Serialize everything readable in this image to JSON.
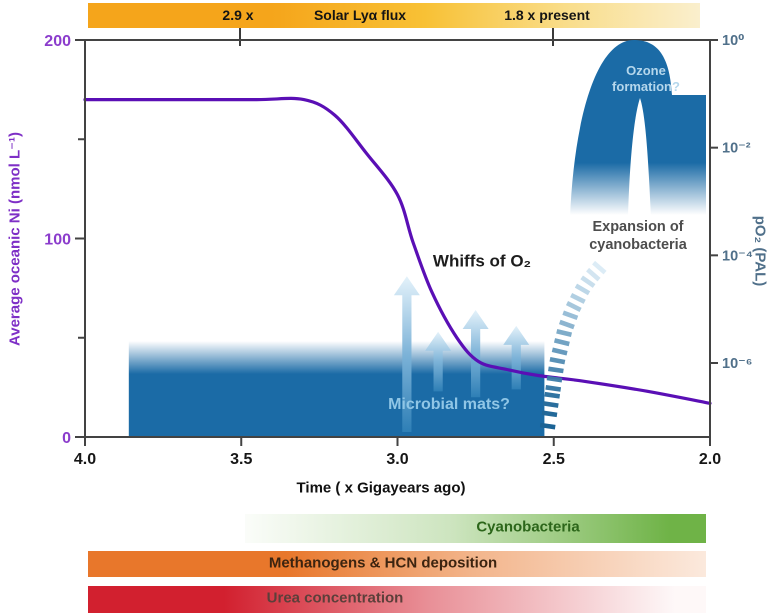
{
  "top_bar": {
    "flux_left_marker": "2.9 x",
    "flux_title": "Solar Lyα flux",
    "flux_right_marker": "1.8 x present"
  },
  "axis_titles": {
    "x": "Time ( x Gigayears ago)",
    "y_left": "Average oceanic Ni (nmol L⁻¹)",
    "y_right": "pO₂ (PAL)"
  },
  "annotations": {
    "whiffs": "Whiffs of O₂",
    "mats": "Microbial mats?",
    "ozone": "Ozone formation?",
    "expansion": "Expansion of cyanobacteria"
  },
  "timeline_bar_labels": {
    "cyanobacteria": "Cyanobacteria",
    "methanogens": "Methanogens & HCN deposition",
    "urea": "Urea concentration"
  },
  "colors": {
    "ni_curve": "#5a0fb5",
    "ni_axis_text": "#8b3ccc",
    "po2_axis_text": "#50708a",
    "steel_blue": "#1b6ba6",
    "frame": "#434343",
    "flux_bar_orange": "#f5a51b",
    "cyanobacteria_green": "#6fb347",
    "methanogens_orange": "#e8772b",
    "urea_red": "#d2202f"
  },
  "chart_data": {
    "type": "line",
    "x": {
      "label": "Time ( x Gigayears ago)",
      "range": [
        4.0,
        2.0
      ],
      "direction": "decreasing",
      "ticks": [
        {
          "v": 4.0,
          "label": "4.0"
        },
        {
          "v": 3.5,
          "label": "3.5"
        },
        {
          "v": 3.0,
          "label": "3.0"
        },
        {
          "v": 2.5,
          "label": "2.5"
        },
        {
          "v": 2.0,
          "label": "2.0"
        }
      ]
    },
    "y_left": {
      "label": "Average oceanic Ni (nmol L⁻¹)",
      "range": [
        0,
        200
      ],
      "major_ticks": [
        {
          "v": 200,
          "label": "200"
        },
        {
          "v": 100,
          "label": "100"
        },
        {
          "v": 0,
          "label": "0"
        }
      ],
      "minor_ticks": [
        150,
        50
      ]
    },
    "y_right": {
      "label": "pO₂ (PAL)",
      "scale": "log10",
      "ticks": [
        {
          "exp": 0,
          "label": "10⁰"
        },
        {
          "exp": -2,
          "label": "10⁻²"
        },
        {
          "exp": -4,
          "label": "10⁻⁴"
        },
        {
          "exp": -6,
          "label": "10⁻⁶"
        }
      ]
    },
    "top_axis_bar": {
      "title": "Solar Lyα flux",
      "markers": [
        {
          "x": 3.5,
          "label": "2.9 x"
        },
        {
          "x": 2.5,
          "label": "1.8 x present"
        }
      ]
    },
    "series": [
      {
        "name": "Average oceanic Ni",
        "axis": "left",
        "style": "solid",
        "color": "#5a0fb5",
        "points": [
          [
            4.0,
            170
          ],
          [
            3.7,
            170
          ],
          [
            3.45,
            170
          ],
          [
            3.3,
            170
          ],
          [
            3.2,
            162
          ],
          [
            3.1,
            143
          ],
          [
            3.0,
            122
          ],
          [
            2.95,
            98
          ],
          [
            2.89,
            73
          ],
          [
            2.81,
            50
          ],
          [
            2.74,
            38
          ],
          [
            2.65,
            34
          ],
          [
            2.55,
            31
          ],
          [
            2.4,
            28
          ],
          [
            2.2,
            23
          ],
          [
            2.0,
            17
          ]
        ]
      },
      {
        "name": "pO₂ rise (inferred, dashed)",
        "axis": "right",
        "style": "dashed-fading",
        "color": "#155f92",
        "points_log10": [
          [
            2.525,
            -7.4
          ],
          [
            2.505,
            -6.6
          ],
          [
            2.49,
            -6.0
          ],
          [
            2.465,
            -5.4
          ],
          [
            2.44,
            -5.0
          ],
          [
            2.41,
            -4.65
          ],
          [
            2.38,
            -4.4
          ],
          [
            2.35,
            -4.2
          ]
        ]
      }
    ],
    "whiff_arrows": [
      {
        "t": 2.97,
        "ni_base": 2.5,
        "ni_tip": 81
      },
      {
        "t": 2.87,
        "ni_base": 23,
        "ni_tip": 53
      },
      {
        "t": 2.75,
        "ni_base": 20,
        "ni_tip": 64
      },
      {
        "t": 2.62,
        "ni_base": 24,
        "ni_tip": 56
      }
    ],
    "regions": [
      {
        "label": "Microbial mats?",
        "t_span": [
          3.86,
          2.53
        ],
        "ni_top": 33
      },
      {
        "label": "Ozone formation?",
        "t_span": [
          2.4,
          2.08
        ],
        "note": "arch near 10⁰ PAL"
      }
    ],
    "timeline_bars": [
      {
        "label": "Cyanobacteria",
        "t_span": [
          3.49,
          2.01
        ],
        "color": "#6fb347",
        "fade": "left"
      },
      {
        "label": "Methanogens & HCN deposition",
        "t_span": [
          4.0,
          2.01
        ],
        "color": "#e8772b",
        "fade": "right"
      },
      {
        "label": "Urea concentration",
        "t_span": [
          4.0,
          2.01
        ],
        "color": "#d2202f",
        "fade": "right"
      }
    ]
  }
}
